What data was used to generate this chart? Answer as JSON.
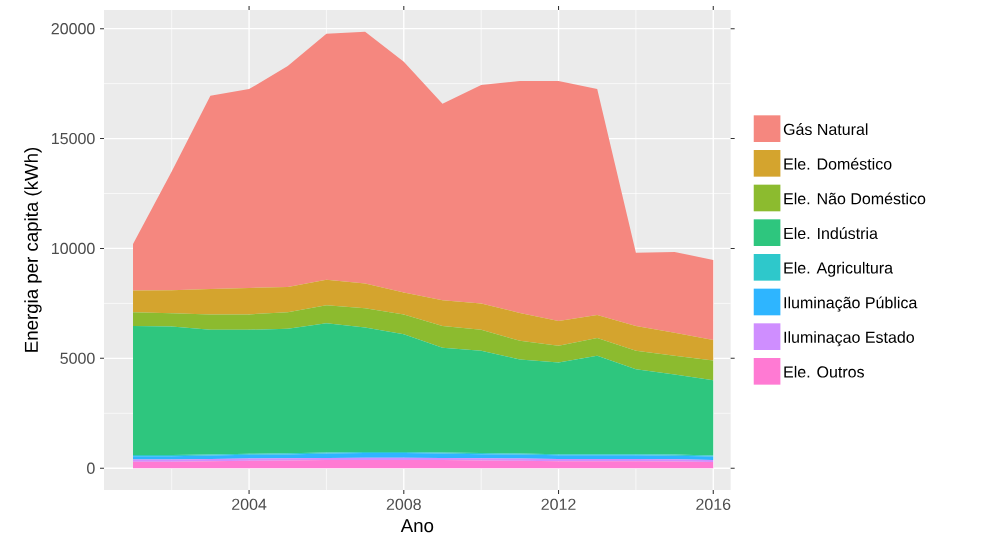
{
  "chart_data": {
    "type": "area",
    "stacked": true,
    "xlabel": "Ano",
    "ylabel": "Energia per capita (kWh)",
    "x": [
      2001,
      2002,
      2003,
      2004,
      2005,
      2006,
      2007,
      2008,
      2009,
      2010,
      2011,
      2012,
      2013,
      2014,
      2015,
      2016
    ],
    "xlim": [
      2000.25,
      2016.45
    ],
    "xticks": [
      2004,
      2008,
      2012,
      2016
    ],
    "ylim": [
      -990,
      20850
    ],
    "yticks": [
      0,
      5000,
      10000,
      15000,
      20000
    ],
    "grid": true,
    "legend": "right",
    "series": [
      {
        "name": "Ele. Outros",
        "color": "#ff7ad3",
        "values": [
          300,
          300,
          320,
          340,
          350,
          370,
          380,
          380,
          370,
          350,
          340,
          320,
          320,
          320,
          310,
          280
        ]
      },
      {
        "name": "Iluminaçao Estado",
        "color": "#cf8eff",
        "values": [
          100,
          100,
          100,
          100,
          100,
          100,
          100,
          100,
          100,
          100,
          100,
          100,
          100,
          100,
          100,
          100
        ]
      },
      {
        "name": "Iluminação Pública",
        "color": "#2eb5ff",
        "values": [
          150,
          150,
          160,
          170,
          180,
          200,
          210,
          210,
          200,
          190,
          180,
          170,
          170,
          170,
          160,
          150
        ]
      },
      {
        "name": "Ele. Agricultura",
        "color": "#2ec8cb",
        "values": [
          50,
          50,
          50,
          50,
          50,
          50,
          50,
          50,
          50,
          50,
          50,
          50,
          50,
          50,
          50,
          50
        ]
      },
      {
        "name": "Ele. Indústria",
        "color": "#2ec67e",
        "values": [
          5870,
          5850,
          5670,
          5640,
          5670,
          5880,
          5660,
          5360,
          4760,
          4660,
          4280,
          4170,
          4480,
          3860,
          3650,
          3420
        ]
      },
      {
        "name": "Ele. Não Doméstico",
        "color": "#8cbb2f",
        "values": [
          630,
          600,
          700,
          700,
          750,
          820,
          880,
          900,
          990,
          950,
          850,
          760,
          810,
          850,
          850,
          900
        ]
      },
      {
        "name": "Ele. Doméstico",
        "color": "#d4a42e",
        "values": [
          990,
          1050,
          1150,
          1200,
          1150,
          1160,
          1120,
          1000,
          1170,
          1200,
          1260,
          1130,
          1040,
          1120,
          1040,
          940
        ]
      },
      {
        "name": "Gás Natural",
        "color": "#f5877f",
        "values": [
          2110,
          5400,
          8800,
          9050,
          10050,
          11190,
          11460,
          10500,
          8940,
          9940,
          10560,
          10920,
          10280,
          3330,
          3680,
          3640
        ]
      }
    ]
  }
}
